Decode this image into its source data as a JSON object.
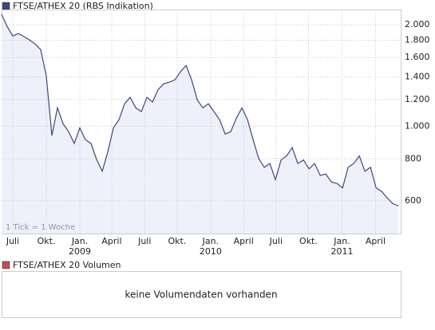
{
  "chart_data": {
    "type": "line",
    "legend": "FTSE/ATHEX 20 (RBS Indikation)",
    "annotation": "1 Tick = 1 Woche",
    "series": [
      {
        "name": "FTSE/ATHEX 20",
        "color": "#3b4a7a",
        "fill": "#eef0fa",
        "values": [
          2147,
          1978,
          1853,
          1885,
          1846,
          1804,
          1754,
          1688,
          1410,
          938,
          1134,
          1017,
          963,
          889,
          989,
          912,
          889,
          797,
          735,
          840,
          989,
          1046,
          1166,
          1218,
          1134,
          1105,
          1218,
          1180,
          1285,
          1336,
          1351,
          1373,
          1451,
          1515,
          1373,
          1198,
          1134,
          1166,
          1105,
          1046,
          948,
          963,
          1056,
          1134,
          1046,
          912,
          802,
          755,
          775,
          694,
          794,
          816,
          864,
          775,
          794,
          747,
          775,
          714,
          721,
          683,
          676,
          656,
          755,
          775,
          816,
          735,
          755,
          656,
          640,
          612,
          589,
          580
        ]
      }
    ],
    "log_scale": true,
    "ylim": [
      480,
      2220
    ],
    "yticks": [
      {
        "value": 2000,
        "label": "2.000"
      },
      {
        "value": 1800,
        "label": "1.800"
      },
      {
        "value": 1600,
        "label": "1.600"
      },
      {
        "value": 1400,
        "label": "1.400"
      },
      {
        "value": 1200,
        "label": "1.200"
      },
      {
        "value": 1000,
        "label": "1.000"
      },
      800,
      600
    ],
    "xlim": [
      0,
      71.4
    ],
    "xticks": [
      {
        "value": 2,
        "label": "Juli"
      },
      {
        "value": 8,
        "label": "Okt."
      },
      {
        "value": 14,
        "label": "Jan."
      },
      {
        "value": 19.7,
        "label": "April"
      },
      {
        "value": 25.6,
        "label": "Juli"
      },
      {
        "value": 31.4,
        "label": "Okt."
      },
      {
        "value": 37.4,
        "label": "Jan."
      },
      {
        "value": 43.3,
        "label": "April"
      },
      {
        "value": 49.1,
        "label": "Juli"
      },
      {
        "value": 54.9,
        "label": "Okt."
      },
      {
        "value": 60.9,
        "label": "Jan."
      },
      {
        "value": 66.9,
        "label": "April"
      }
    ],
    "year_labels": [
      {
        "value": 14,
        "label": "2009"
      },
      {
        "value": 37.4,
        "label": "2010"
      },
      {
        "value": 60.9,
        "label": "2011"
      }
    ],
    "grid": true,
    "volume": {
      "legend": "FTSE/ATHEX 20 Volumen",
      "color": "#c85050",
      "message": "keine Volumendaten vorhanden"
    }
  }
}
